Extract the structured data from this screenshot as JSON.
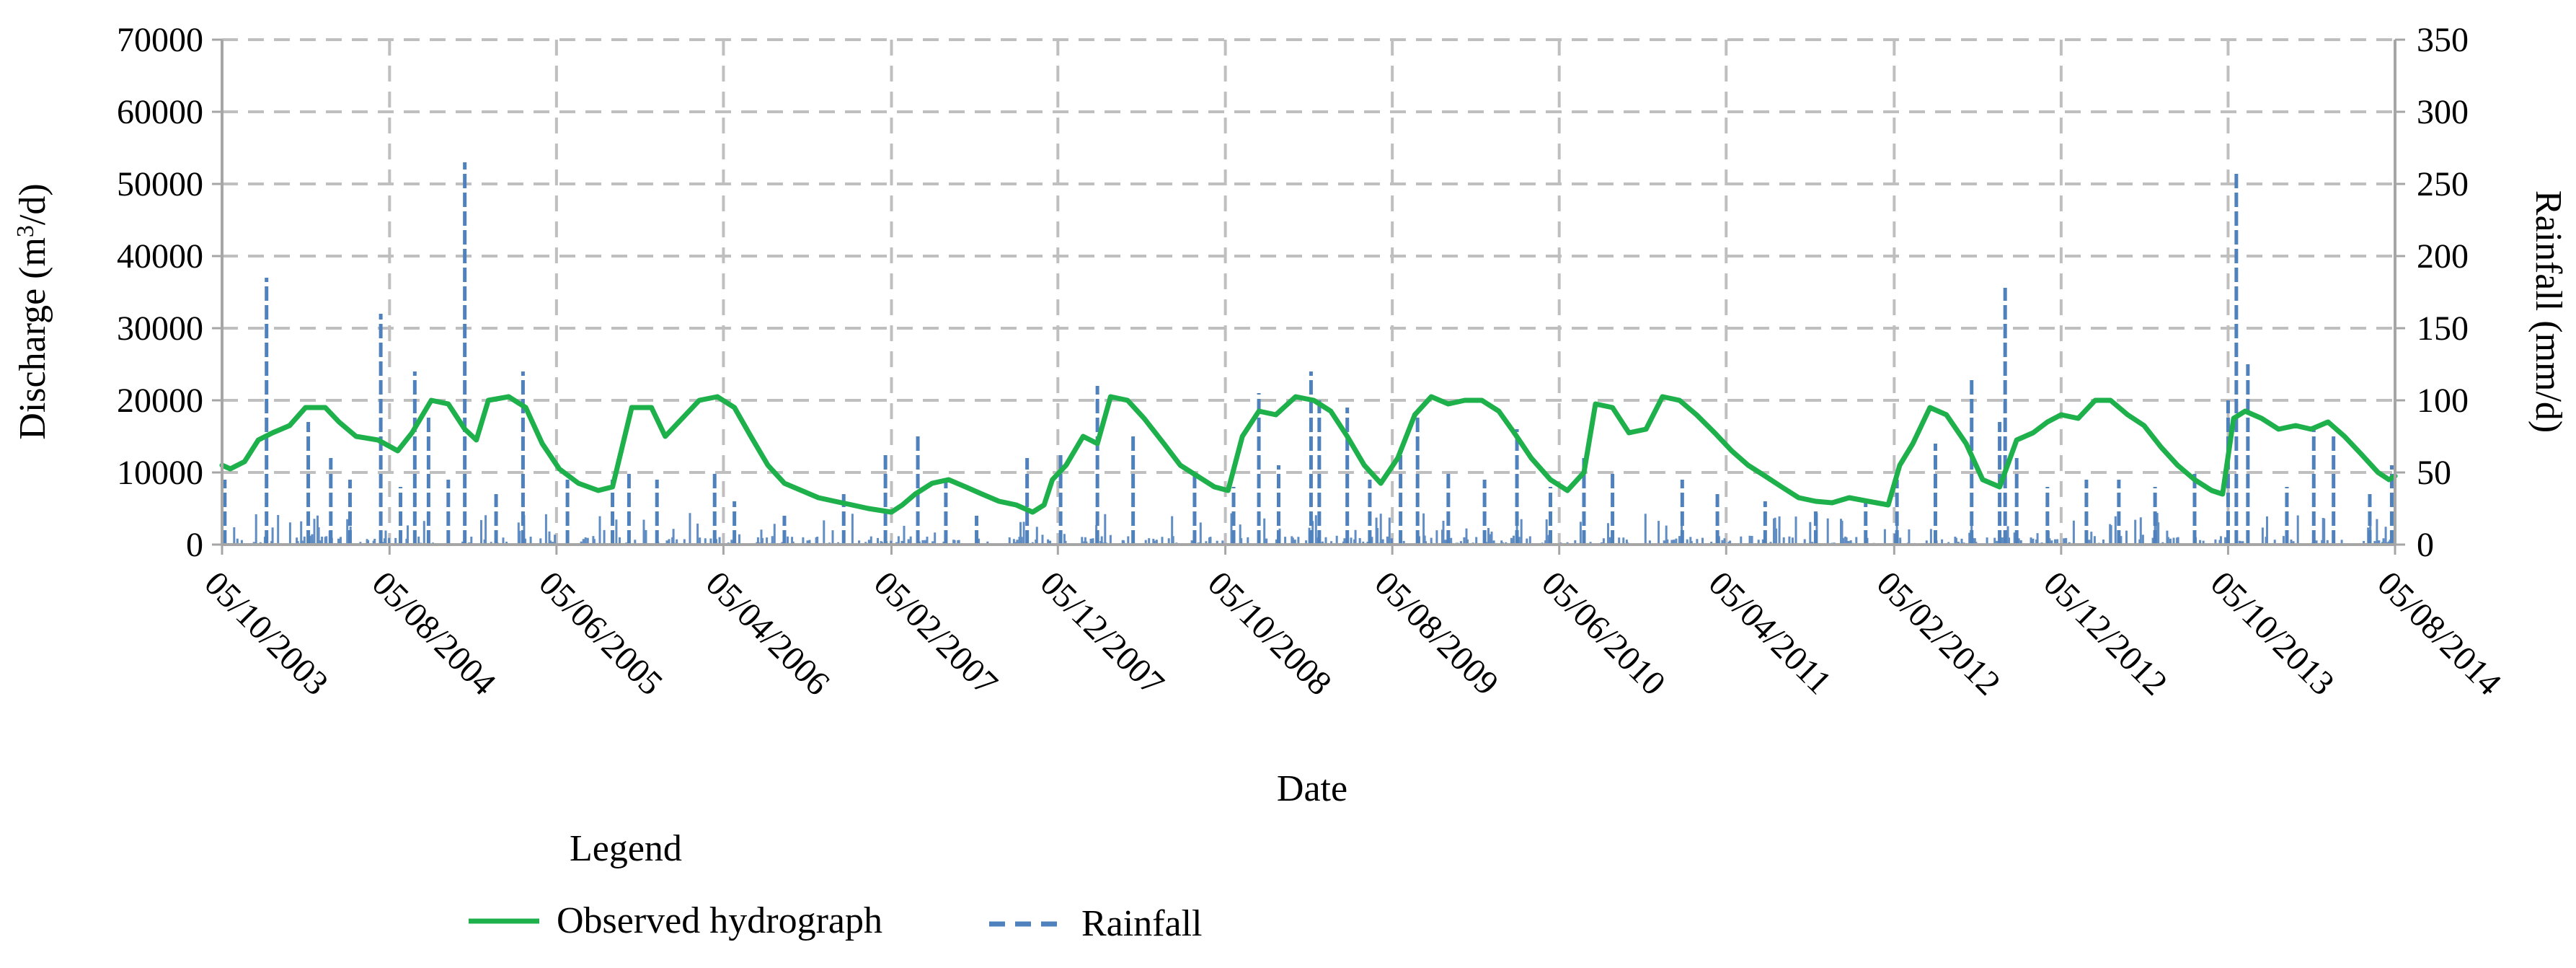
{
  "chart_data": {
    "type": "line",
    "title": "",
    "xlabel": "Date",
    "ylabel_left": "Discharge (m",
    "ylabel_left_sup": "3",
    "ylabel_left_tail": "/d)",
    "ylabel_right": "Rainfall (mm/d)",
    "x_range": [
      "2003-10-05",
      "2014-08-05"
    ],
    "x_tick_labels": [
      "05/10/2003",
      "05/08/2004",
      "05/06/2005",
      "05/04/2006",
      "05/02/2007",
      "05/12/2007",
      "05/10/2008",
      "05/08/2009",
      "05/06/2010",
      "05/04/2011",
      "05/02/2012",
      "05/12/2012",
      "05/10/2013",
      "05/08/2014"
    ],
    "x_tick_dates": [
      "2003-10-05",
      "2004-08-05",
      "2005-06-05",
      "2006-04-05",
      "2007-02-05",
      "2007-12-05",
      "2008-10-05",
      "2009-08-05",
      "2010-06-05",
      "2011-04-05",
      "2012-02-05",
      "2012-12-05",
      "2013-10-05",
      "2014-08-05"
    ],
    "y_left_ticks": [
      "0",
      "10000",
      "20000",
      "30000",
      "40000",
      "50000",
      "60000",
      "70000"
    ],
    "y_left_range": [
      0,
      70000
    ],
    "y_right_ticks": [
      "0",
      "50",
      "100",
      "150",
      "200",
      "250",
      "300",
      "350"
    ],
    "y_right_range": [
      0,
      350
    ],
    "grid": true,
    "legend_position": "bottom",
    "legend_title": "Legend",
    "colors": {
      "hydrograph": "#1db04b",
      "rainfall": "#4f81bd",
      "grid": "#bfbfbf",
      "axis": "#a6a6a6"
    },
    "series": [
      {
        "name": "Observed hydrograph",
        "axis": "left",
        "style": "solid",
        "points": [
          [
            "2003-10-05",
            11000
          ],
          [
            "2003-10-20",
            10500
          ],
          [
            "2003-11-15",
            11500
          ],
          [
            "2003-12-10",
            14500
          ],
          [
            "2004-01-05",
            15500
          ],
          [
            "2004-02-05",
            16500
          ],
          [
            "2004-03-05",
            19000
          ],
          [
            "2004-04-10",
            19000
          ],
          [
            "2004-05-05",
            17000
          ],
          [
            "2004-06-05",
            15000
          ],
          [
            "2004-07-15",
            14500
          ],
          [
            "2004-08-20",
            13000
          ],
          [
            "2004-09-15",
            15500
          ],
          [
            "2004-10-20",
            20000
          ],
          [
            "2004-11-20",
            19500
          ],
          [
            "2004-12-20",
            16000
          ],
          [
            "2005-01-10",
            14500
          ],
          [
            "2005-02-01",
            20000
          ],
          [
            "2005-03-10",
            20500
          ],
          [
            "2005-04-10",
            19000
          ],
          [
            "2005-05-10",
            14000
          ],
          [
            "2005-06-10",
            10500
          ],
          [
            "2005-07-15",
            8500
          ],
          [
            "2005-08-20",
            7500
          ],
          [
            "2005-09-15",
            8000
          ],
          [
            "2005-10-20",
            19000
          ],
          [
            "2005-11-25",
            19000
          ],
          [
            "2005-12-20",
            15000
          ],
          [
            "2006-01-20",
            17500
          ],
          [
            "2006-02-20",
            20000
          ],
          [
            "2006-03-25",
            20500
          ],
          [
            "2006-04-25",
            19000
          ],
          [
            "2006-05-25",
            15000
          ],
          [
            "2006-06-25",
            11000
          ],
          [
            "2006-07-25",
            8500
          ],
          [
            "2006-08-25",
            7500
          ],
          [
            "2006-09-25",
            6500
          ],
          [
            "2006-10-25",
            6000
          ],
          [
            "2006-11-25",
            5500
          ],
          [
            "2006-12-25",
            5000
          ],
          [
            "2007-02-05",
            4500
          ],
          [
            "2007-02-25",
            5500
          ],
          [
            "2007-03-20",
            7000
          ],
          [
            "2007-04-20",
            8500
          ],
          [
            "2007-05-20",
            9000
          ],
          [
            "2007-06-20",
            8000
          ],
          [
            "2007-07-20",
            7000
          ],
          [
            "2007-08-20",
            6000
          ],
          [
            "2007-09-20",
            5500
          ],
          [
            "2007-10-20",
            4500
          ],
          [
            "2007-11-10",
            5500
          ],
          [
            "2007-11-25",
            9000
          ],
          [
            "2007-12-20",
            11000
          ],
          [
            "2008-01-20",
            15000
          ],
          [
            "2008-02-15",
            14000
          ],
          [
            "2008-03-10",
            20500
          ],
          [
            "2008-04-10",
            20000
          ],
          [
            "2008-05-10",
            17500
          ],
          [
            "2008-06-15",
            14000
          ],
          [
            "2008-07-15",
            11000
          ],
          [
            "2008-08-15",
            9500
          ],
          [
            "2008-09-15",
            8000
          ],
          [
            "2008-10-10",
            7500
          ],
          [
            "2008-11-05",
            15000
          ],
          [
            "2008-12-05",
            18500
          ],
          [
            "2009-01-05",
            18000
          ],
          [
            "2009-02-10",
            20500
          ],
          [
            "2009-03-15",
            20000
          ],
          [
            "2009-04-15",
            18500
          ],
          [
            "2009-05-15",
            15000
          ],
          [
            "2009-06-15",
            11000
          ],
          [
            "2009-07-15",
            8500
          ],
          [
            "2009-08-15",
            12000
          ],
          [
            "2009-09-15",
            18000
          ],
          [
            "2009-10-15",
            20500
          ],
          [
            "2009-11-15",
            19500
          ],
          [
            "2009-12-15",
            20000
          ],
          [
            "2010-01-15",
            20000
          ],
          [
            "2010-02-15",
            18500
          ],
          [
            "2010-03-15",
            15500
          ],
          [
            "2010-04-15",
            12000
          ],
          [
            "2010-05-20",
            9000
          ],
          [
            "2010-06-20",
            7500
          ],
          [
            "2010-07-20",
            10000
          ],
          [
            "2010-08-10",
            19500
          ],
          [
            "2010-09-10",
            19000
          ],
          [
            "2010-10-10",
            15500
          ],
          [
            "2010-11-10",
            16000
          ],
          [
            "2010-12-10",
            20500
          ],
          [
            "2011-01-10",
            20000
          ],
          [
            "2011-02-10",
            18000
          ],
          [
            "2011-03-15",
            15500
          ],
          [
            "2011-04-15",
            13000
          ],
          [
            "2011-05-15",
            11000
          ],
          [
            "2011-06-15",
            9500
          ],
          [
            "2011-07-15",
            8000
          ],
          [
            "2011-08-15",
            6500
          ],
          [
            "2011-09-15",
            6000
          ],
          [
            "2011-10-15",
            5800
          ],
          [
            "2011-11-15",
            6500
          ],
          [
            "2011-12-20",
            6000
          ],
          [
            "2012-01-25",
            5500
          ],
          [
            "2012-02-15",
            11000
          ],
          [
            "2012-03-10",
            14000
          ],
          [
            "2012-04-10",
            19000
          ],
          [
            "2012-05-10",
            18000
          ],
          [
            "2012-06-15",
            14000
          ],
          [
            "2012-07-15",
            9000
          ],
          [
            "2012-08-15",
            8000
          ],
          [
            "2012-09-15",
            14500
          ],
          [
            "2012-10-15",
            15500
          ],
          [
            "2012-11-10",
            17000
          ],
          [
            "2012-12-05",
            18000
          ],
          [
            "2013-01-05",
            17500
          ],
          [
            "2013-02-05",
            20000
          ],
          [
            "2013-03-05",
            20000
          ],
          [
            "2013-04-05",
            18000
          ],
          [
            "2013-05-05",
            16500
          ],
          [
            "2013-06-05",
            13500
          ],
          [
            "2013-07-05",
            11000
          ],
          [
            "2013-08-05",
            9000
          ],
          [
            "2013-09-05",
            7500
          ],
          [
            "2013-09-25",
            7000
          ],
          [
            "2013-10-15",
            17500
          ],
          [
            "2013-11-05",
            18500
          ],
          [
            "2013-12-05",
            17500
          ],
          [
            "2014-01-05",
            16000
          ],
          [
            "2014-02-05",
            16500
          ],
          [
            "2014-03-05",
            16000
          ],
          [
            "2014-04-05",
            17000
          ],
          [
            "2014-05-05",
            15000
          ],
          [
            "2014-06-05",
            12500
          ],
          [
            "2014-07-05",
            10000
          ],
          [
            "2014-07-25",
            9000
          ],
          [
            "2014-08-05",
            9500
          ]
        ]
      },
      {
        "name": "Rainfall",
        "axis": "right",
        "style": "dashed",
        "peaks": [
          [
            "2003-10-10",
            45
          ],
          [
            "2003-12-25",
            185
          ],
          [
            "2004-03-10",
            85
          ],
          [
            "2004-04-20",
            60
          ],
          [
            "2004-05-25",
            45
          ],
          [
            "2004-07-20",
            160
          ],
          [
            "2004-08-25",
            40
          ],
          [
            "2004-09-20",
            120
          ],
          [
            "2004-10-15",
            90
          ],
          [
            "2004-11-20",
            45
          ],
          [
            "2004-12-20",
            265
          ],
          [
            "2005-02-15",
            35
          ],
          [
            "2005-04-05",
            120
          ],
          [
            "2005-06-25",
            45
          ],
          [
            "2005-09-15",
            45
          ],
          [
            "2005-10-15",
            50
          ],
          [
            "2005-12-05",
            45
          ],
          [
            "2006-03-20",
            50
          ],
          [
            "2006-04-25",
            30
          ],
          [
            "2006-07-25",
            20
          ],
          [
            "2006-11-10",
            35
          ],
          [
            "2007-01-25",
            65
          ],
          [
            "2007-03-25",
            75
          ],
          [
            "2007-05-15",
            45
          ],
          [
            "2007-07-10",
            20
          ],
          [
            "2007-10-10",
            60
          ],
          [
            "2007-12-10",
            65
          ],
          [
            "2008-02-15",
            110
          ],
          [
            "2008-04-20",
            75
          ],
          [
            "2008-08-10",
            50
          ],
          [
            "2008-10-20",
            40
          ],
          [
            "2008-12-05",
            105
          ],
          [
            "2009-01-10",
            55
          ],
          [
            "2009-03-10",
            120
          ],
          [
            "2009-03-25",
            100
          ],
          [
            "2009-05-15",
            95
          ],
          [
            "2009-06-25",
            45
          ],
          [
            "2009-08-20",
            65
          ],
          [
            "2009-09-20",
            90
          ],
          [
            "2009-11-15",
            50
          ],
          [
            "2010-01-20",
            45
          ],
          [
            "2010-03-20",
            80
          ],
          [
            "2010-05-20",
            40
          ],
          [
            "2010-07-20",
            60
          ],
          [
            "2010-09-10",
            50
          ],
          [
            "2011-01-15",
            45
          ],
          [
            "2011-03-20",
            35
          ],
          [
            "2011-06-15",
            30
          ],
          [
            "2011-09-15",
            25
          ],
          [
            "2011-12-15",
            30
          ],
          [
            "2012-02-10",
            45
          ],
          [
            "2012-04-20",
            70
          ],
          [
            "2012-06-25",
            115
          ],
          [
            "2012-08-15",
            85
          ],
          [
            "2012-08-25",
            178
          ],
          [
            "2012-09-15",
            60
          ],
          [
            "2012-11-10",
            40
          ],
          [
            "2013-01-20",
            45
          ],
          [
            "2013-03-20",
            45
          ],
          [
            "2013-05-25",
            40
          ],
          [
            "2013-08-05",
            50
          ],
          [
            "2013-10-05",
            100
          ],
          [
            "2013-10-20",
            257
          ],
          [
            "2013-11-10",
            125
          ],
          [
            "2014-01-20",
            40
          ],
          [
            "2014-03-10",
            80
          ],
          [
            "2014-04-15",
            75
          ],
          [
            "2014-06-20",
            35
          ],
          [
            "2014-07-30",
            55
          ]
        ]
      }
    ]
  }
}
